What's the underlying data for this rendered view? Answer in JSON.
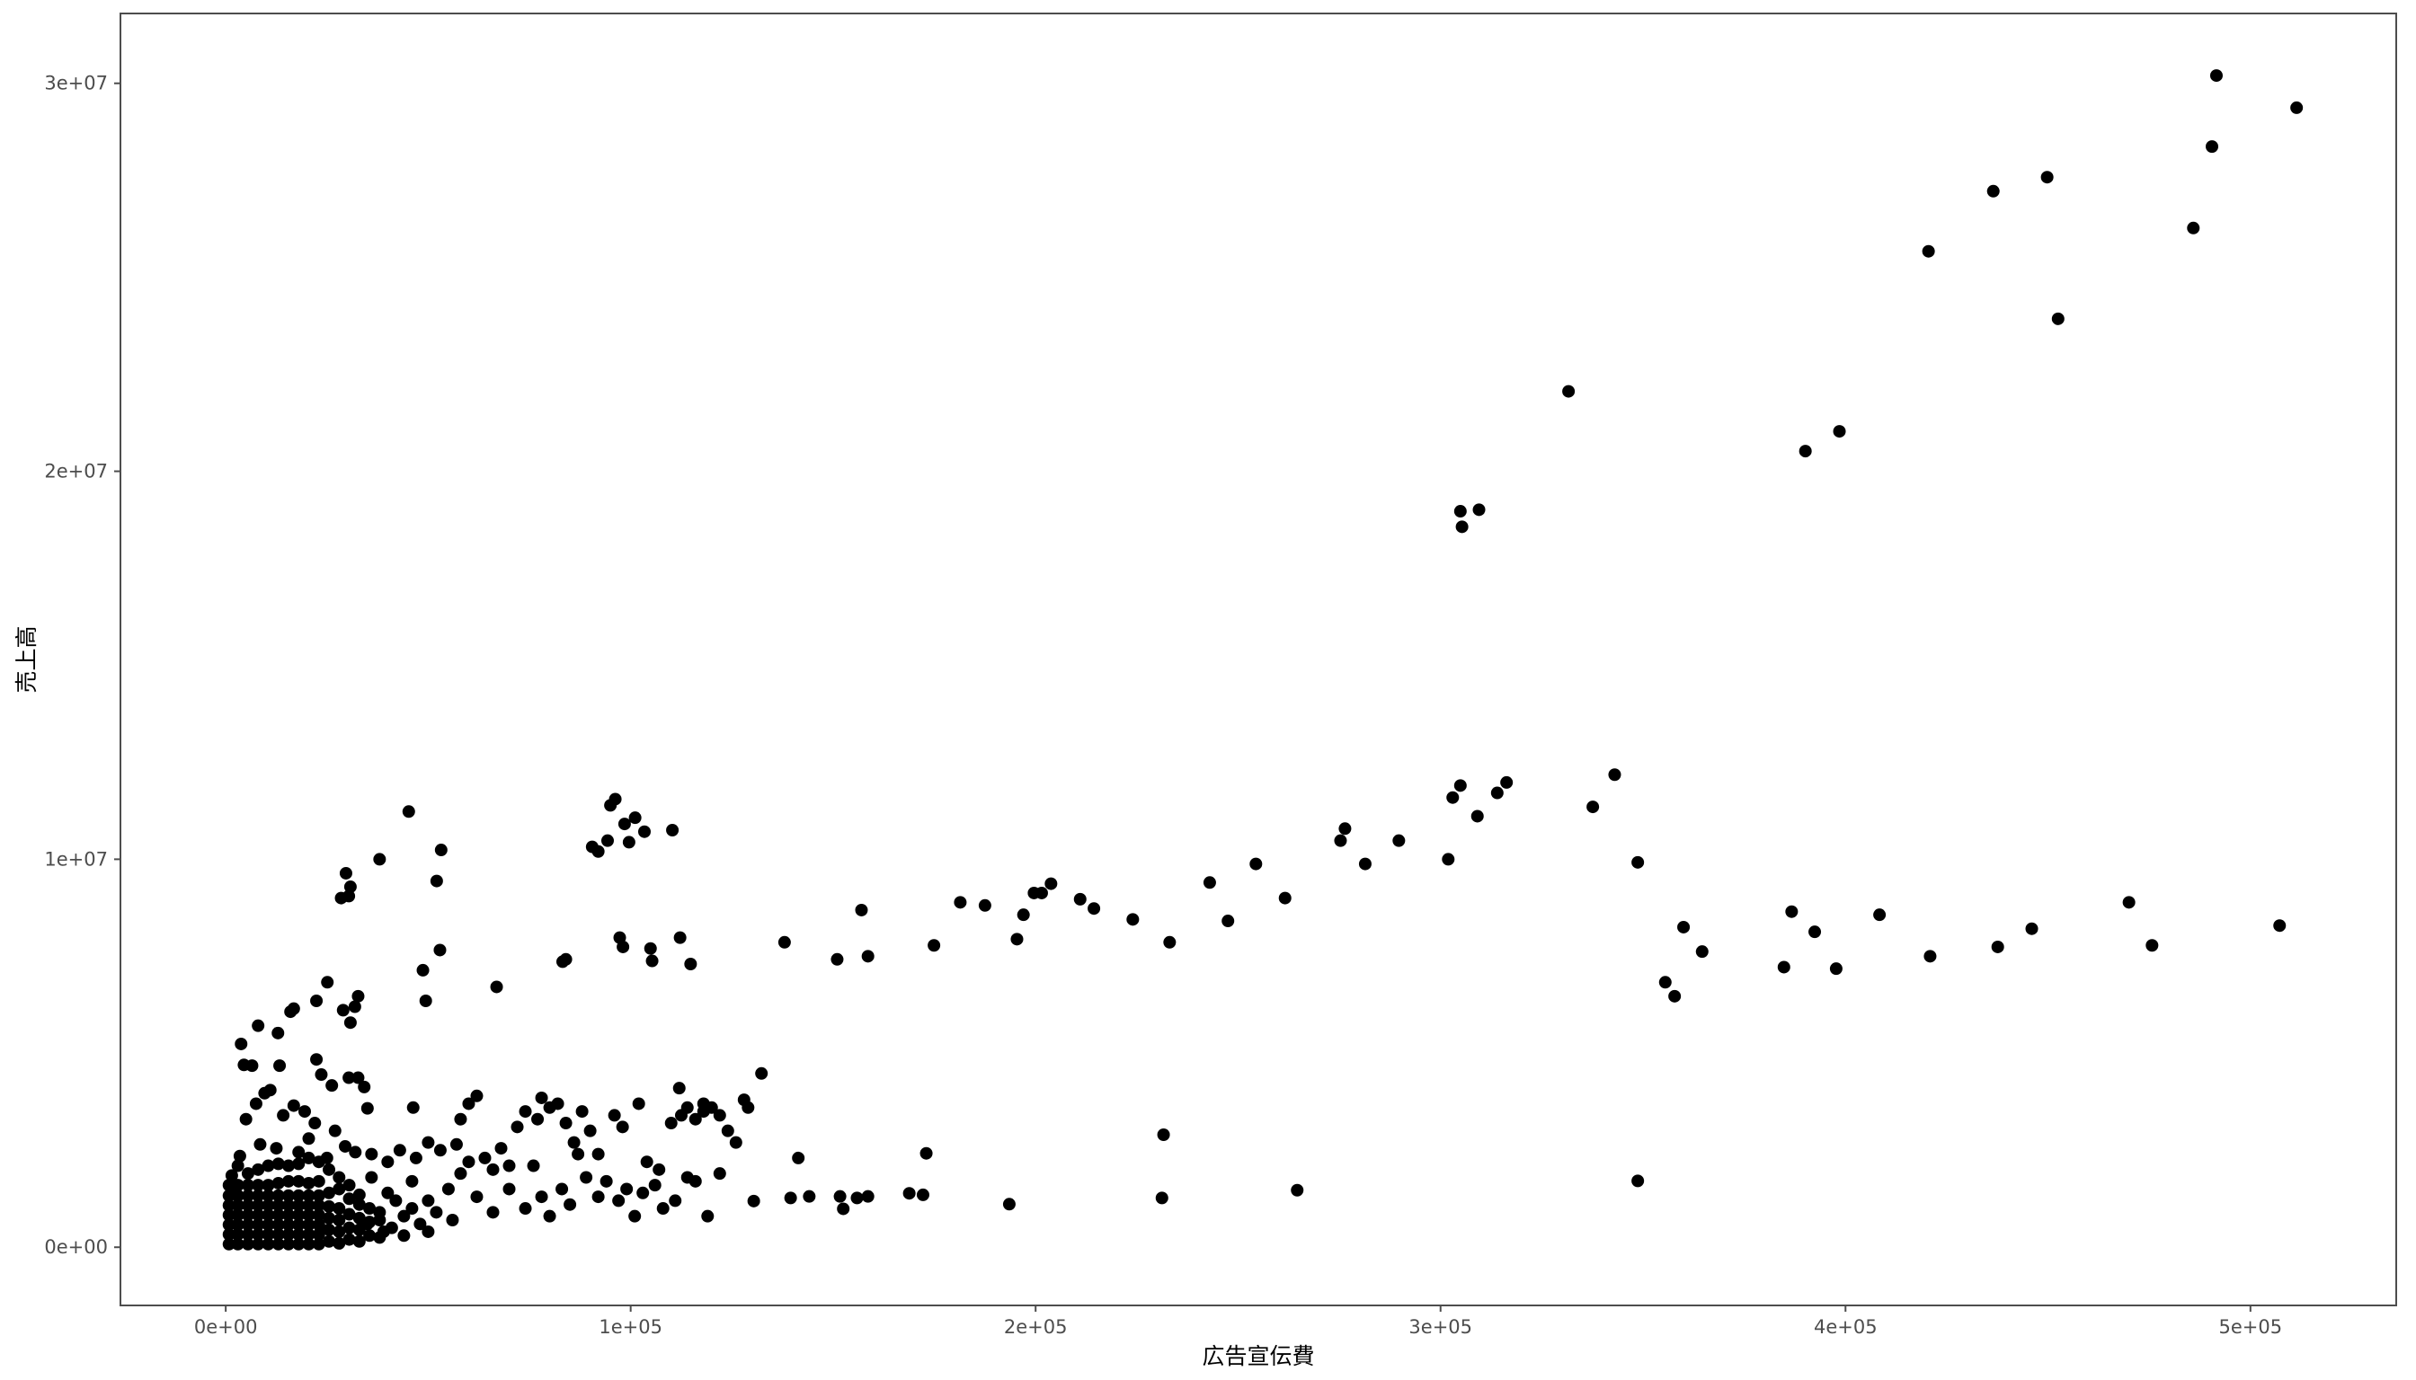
{
  "chart_data": {
    "type": "scatter",
    "title": "",
    "xlabel": "広告宣伝費",
    "ylabel": "売上高",
    "xlim": [
      -26000,
      536000
    ],
    "ylim": [
      -1500000,
      31800000
    ],
    "xticks": [
      0,
      100000,
      200000,
      300000,
      400000,
      500000
    ],
    "xtick_labels": [
      "0e+00",
      "1e+05",
      "2e+05",
      "3e+05",
      "4e+05",
      "5e+05"
    ],
    "yticks": [
      0,
      10000000,
      20000000,
      30000000
    ],
    "ytick_labels": [
      "0e+00",
      "1e+07",
      "2e+07",
      "3e+07"
    ],
    "grid": false,
    "point_color": "#000000",
    "points": [
      [
        491600,
        30200000
      ],
      [
        511400,
        29370000
      ],
      [
        449800,
        27580000
      ],
      [
        436500,
        27220000
      ],
      [
        490500,
        28370000
      ],
      [
        420500,
        25670000
      ],
      [
        485900,
        26270000
      ],
      [
        452500,
        23930000
      ],
      [
        331600,
        22060000
      ],
      [
        398500,
        21030000
      ],
      [
        390100,
        20520000
      ],
      [
        304900,
        18970000
      ],
      [
        309500,
        19010000
      ],
      [
        305300,
        18570000
      ],
      [
        343000,
        12180000
      ],
      [
        316300,
        11980000
      ],
      [
        304900,
        11900000
      ],
      [
        303000,
        11590000
      ],
      [
        314000,
        11710000
      ],
      [
        337600,
        11350000
      ],
      [
        309100,
        11110000
      ],
      [
        301900,
        10000000
      ],
      [
        348700,
        9920000
      ],
      [
        276400,
        10790000
      ],
      [
        275300,
        10480000
      ],
      [
        289700,
        10480000
      ],
      [
        281400,
        9880000
      ],
      [
        254400,
        9880000
      ],
      [
        243000,
        9400000
      ],
      [
        261600,
        9000000
      ],
      [
        247500,
        8410000
      ],
      [
        233100,
        7860000
      ],
      [
        224000,
        8450000
      ],
      [
        211000,
        8970000
      ],
      [
        214400,
        8730000
      ],
      [
        203800,
        9370000
      ],
      [
        199600,
        9130000
      ],
      [
        201500,
        9130000
      ],
      [
        197000,
        8570000
      ],
      [
        195400,
        7940000
      ],
      [
        187500,
        8810000
      ],
      [
        181400,
        8890000
      ],
      [
        174900,
        7780000
      ],
      [
        157000,
        8690000
      ],
      [
        158600,
        7500000
      ],
      [
        151000,
        7420000
      ],
      [
        138000,
        7860000
      ],
      [
        360000,
        8250000
      ],
      [
        364600,
        7620000
      ],
      [
        355500,
        6830000
      ],
      [
        357800,
        6470000
      ],
      [
        386700,
        8650000
      ],
      [
        392400,
        8130000
      ],
      [
        384800,
        7220000
      ],
      [
        397700,
        7180000
      ],
      [
        408400,
        8570000
      ],
      [
        420900,
        7500000
      ],
      [
        437600,
        7740000
      ],
      [
        446000,
        8210000
      ],
      [
        470000,
        8890000
      ],
      [
        475700,
        7780000
      ],
      [
        507200,
        8290000
      ],
      [
        348700,
        1710000
      ],
      [
        264600,
        1470000
      ],
      [
        231600,
        2900000
      ],
      [
        231200,
        1270000
      ],
      [
        193500,
        1110000
      ],
      [
        173000,
        2420000
      ],
      [
        172200,
        1350000
      ],
      [
        168800,
        1390000
      ],
      [
        158600,
        1310000
      ],
      [
        155900,
        1270000
      ],
      [
        151700,
        1310000
      ],
      [
        152500,
        990000
      ],
      [
        144100,
        1310000
      ],
      [
        139500,
        1270000
      ],
      [
        141400,
        2300000
      ],
      [
        130400,
        1190000
      ],
      [
        132300,
        4480000
      ],
      [
        96200,
        11550000
      ],
      [
        95000,
        11390000
      ],
      [
        101100,
        11070000
      ],
      [
        98500,
        10910000
      ],
      [
        103400,
        10710000
      ],
      [
        110300,
        10750000
      ],
      [
        99600,
        10440000
      ],
      [
        94300,
        10480000
      ],
      [
        90500,
        10320000
      ],
      [
        92000,
        10200000
      ],
      [
        45200,
        11230000
      ],
      [
        53200,
        10240000
      ],
      [
        52100,
        9440000
      ],
      [
        38000,
        10000000
      ],
      [
        29700,
        9640000
      ],
      [
        30800,
        9290000
      ],
      [
        30400,
        9050000
      ],
      [
        28500,
        9000000
      ],
      [
        52900,
        7660000
      ],
      [
        48700,
        7140000
      ],
      [
        49400,
        6350000
      ],
      [
        66900,
        6710000
      ],
      [
        84000,
        7420000
      ],
      [
        83200,
        7360000
      ],
      [
        97300,
        7980000
      ],
      [
        98100,
        7740000
      ],
      [
        104900,
        7700000
      ],
      [
        105300,
        7380000
      ],
      [
        112200,
        7980000
      ],
      [
        114800,
        7300000
      ],
      [
        25100,
        6830000
      ],
      [
        32700,
        6470000
      ],
      [
        31900,
        6200000
      ],
      [
        22400,
        6350000
      ],
      [
        16000,
        6070000
      ],
      [
        16800,
        6150000
      ],
      [
        8000,
        5710000
      ],
      [
        12900,
        5520000
      ],
      [
        3800,
        5240000
      ],
      [
        29000,
        6110000
      ],
      [
        30800,
        5790000
      ],
      [
        13300,
        4680000
      ],
      [
        6500,
        4680000
      ],
      [
        9600,
        3970000
      ],
      [
        22400,
        4840000
      ],
      [
        23600,
        4450000
      ],
      [
        26200,
        4170000
      ],
      [
        30400,
        4370000
      ],
      [
        32700,
        4370000
      ],
      [
        34200,
        4130000
      ],
      [
        35000,
        3580000
      ],
      [
        46300,
        3600000
      ],
      [
        4500,
        4700000
      ],
      [
        11000,
        4050000
      ],
      [
        5000,
        3300000
      ],
      [
        7500,
        3700000
      ],
      [
        14200,
        3400000
      ],
      [
        16800,
        3650000
      ],
      [
        19500,
        3500000
      ],
      [
        22000,
        3200000
      ],
      [
        27000,
        3000000
      ],
      [
        29500,
        2600000
      ],
      [
        20500,
        2800000
      ],
      [
        18000,
        2450000
      ],
      [
        12500,
        2550000
      ],
      [
        8500,
        2650000
      ],
      [
        3500,
        2350000
      ],
      [
        25000,
        2300000
      ],
      [
        32000,
        2450000
      ],
      [
        36000,
        2400000
      ],
      [
        40000,
        2200000
      ],
      [
        43000,
        2500000
      ],
      [
        47000,
        2300000
      ],
      [
        50000,
        2700000
      ],
      [
        53000,
        2500000
      ],
      [
        57000,
        2650000
      ],
      [
        60000,
        3700000
      ],
      [
        62000,
        3900000
      ],
      [
        58000,
        3300000
      ],
      [
        64000,
        2300000
      ],
      [
        68000,
        2550000
      ],
      [
        72000,
        3100000
      ],
      [
        74000,
        3500000
      ],
      [
        77000,
        3300000
      ],
      [
        78000,
        3850000
      ],
      [
        80000,
        3600000
      ],
      [
        82000,
        3700000
      ],
      [
        84000,
        3200000
      ],
      [
        86000,
        2700000
      ],
      [
        88000,
        3500000
      ],
      [
        90000,
        3000000
      ],
      [
        92000,
        2400000
      ],
      [
        96000,
        3400000
      ],
      [
        98000,
        3100000
      ],
      [
        102000,
        3700000
      ],
      [
        104000,
        2200000
      ],
      [
        107000,
        2000000
      ],
      [
        110000,
        3200000
      ],
      [
        112000,
        4100000
      ],
      [
        114000,
        3600000
      ],
      [
        116000,
        3300000
      ],
      [
        118000,
        3500000
      ],
      [
        120000,
        3600000
      ],
      [
        122000,
        3400000
      ],
      [
        124000,
        3000000
      ],
      [
        126000,
        2700000
      ],
      [
        128000,
        3800000
      ],
      [
        129000,
        3600000
      ],
      [
        118000,
        3700000
      ],
      [
        112500,
        3400000
      ],
      [
        70000,
        2100000
      ],
      [
        66000,
        2000000
      ],
      [
        60000,
        2200000
      ],
      [
        55000,
        1500000
      ],
      [
        58000,
        1900000
      ],
      [
        62000,
        1300000
      ],
      [
        66000,
        900000
      ],
      [
        70000,
        1500000
      ],
      [
        74000,
        1000000
      ],
      [
        76000,
        2100000
      ],
      [
        78000,
        1300000
      ],
      [
        80000,
        800000
      ],
      [
        83000,
        1500000
      ],
      [
        85000,
        1100000
      ],
      [
        87000,
        2400000
      ],
      [
        89000,
        1800000
      ],
      [
        92000,
        1300000
      ],
      [
        94000,
        1700000
      ],
      [
        97000,
        1200000
      ],
      [
        99000,
        1500000
      ],
      [
        101000,
        800000
      ],
      [
        103000,
        1400000
      ],
      [
        106000,
        1600000
      ],
      [
        108000,
        1000000
      ],
      [
        111000,
        1200000
      ],
      [
        114000,
        1800000
      ],
      [
        116000,
        1700000
      ],
      [
        119000,
        800000
      ],
      [
        122000,
        1900000
      ],
      [
        46000,
        1700000
      ],
      [
        50000,
        1200000
      ],
      [
        44000,
        800000
      ],
      [
        40000,
        1400000
      ],
      [
        38000,
        900000
      ],
      [
        36000,
        1800000
      ],
      [
        42000,
        1200000
      ],
      [
        48000,
        600000
      ],
      [
        52000,
        900000
      ],
      [
        56000,
        700000
      ],
      [
        35000,
        600000
      ],
      [
        39000,
        400000
      ],
      [
        33000,
        1100000
      ],
      [
        800,
        80000
      ],
      [
        800,
        330000
      ],
      [
        800,
        580000
      ],
      [
        800,
        830000
      ],
      [
        800,
        1080000
      ],
      [
        800,
        1330000
      ],
      [
        800,
        1600000
      ],
      [
        1500,
        1850000
      ],
      [
        3000,
        2100000
      ],
      [
        2000,
        1400000
      ],
      [
        3000,
        80000
      ],
      [
        3000,
        330000
      ],
      [
        3000,
        580000
      ],
      [
        3000,
        830000
      ],
      [
        3000,
        1080000
      ],
      [
        3000,
        1330000
      ],
      [
        3000,
        1600000
      ],
      [
        5500,
        80000
      ],
      [
        5500,
        330000
      ],
      [
        5500,
        580000
      ],
      [
        5500,
        830000
      ],
      [
        5500,
        1080000
      ],
      [
        5500,
        1330000
      ],
      [
        5500,
        1600000
      ],
      [
        5500,
        1900000
      ],
      [
        8000,
        80000
      ],
      [
        8000,
        330000
      ],
      [
        8000,
        580000
      ],
      [
        8000,
        830000
      ],
      [
        8000,
        1080000
      ],
      [
        8000,
        1330000
      ],
      [
        8000,
        1600000
      ],
      [
        8000,
        2000000
      ],
      [
        10500,
        80000
      ],
      [
        10500,
        330000
      ],
      [
        10500,
        580000
      ],
      [
        10500,
        830000
      ],
      [
        10500,
        1080000
      ],
      [
        10500,
        1330000
      ],
      [
        10500,
        1600000
      ],
      [
        10500,
        2100000
      ],
      [
        13000,
        80000
      ],
      [
        13000,
        330000
      ],
      [
        13000,
        580000
      ],
      [
        13000,
        830000
      ],
      [
        13000,
        1080000
      ],
      [
        13000,
        1330000
      ],
      [
        13000,
        1650000
      ],
      [
        13000,
        2150000
      ],
      [
        15500,
        80000
      ],
      [
        15500,
        330000
      ],
      [
        15500,
        580000
      ],
      [
        15500,
        830000
      ],
      [
        15500,
        1080000
      ],
      [
        15500,
        1330000
      ],
      [
        15500,
        1700000
      ],
      [
        15500,
        2100000
      ],
      [
        18000,
        80000
      ],
      [
        18000,
        330000
      ],
      [
        18000,
        580000
      ],
      [
        18000,
        830000
      ],
      [
        18000,
        1080000
      ],
      [
        18000,
        1330000
      ],
      [
        18000,
        1700000
      ],
      [
        18000,
        2150000
      ],
      [
        20500,
        80000
      ],
      [
        20500,
        330000
      ],
      [
        20500,
        580000
      ],
      [
        20500,
        830000
      ],
      [
        20500,
        1080000
      ],
      [
        20500,
        1330000
      ],
      [
        20500,
        1650000
      ],
      [
        20500,
        2300000
      ],
      [
        23000,
        80000
      ],
      [
        23000,
        330000
      ],
      [
        23000,
        580000
      ],
      [
        23000,
        830000
      ],
      [
        23000,
        1080000
      ],
      [
        23000,
        1330000
      ],
      [
        23000,
        1700000
      ],
      [
        23000,
        2200000
      ],
      [
        25500,
        150000
      ],
      [
        25500,
        450000
      ],
      [
        25500,
        750000
      ],
      [
        25500,
        1050000
      ],
      [
        25500,
        1400000
      ],
      [
        25500,
        2000000
      ],
      [
        28000,
        100000
      ],
      [
        28000,
        400000
      ],
      [
        28000,
        700000
      ],
      [
        28000,
        1000000
      ],
      [
        28000,
        1500000
      ],
      [
        28000,
        1800000
      ],
      [
        30500,
        200000
      ],
      [
        30500,
        500000
      ],
      [
        30500,
        850000
      ],
      [
        30500,
        1250000
      ],
      [
        30500,
        1600000
      ],
      [
        33000,
        150000
      ],
      [
        33000,
        450000
      ],
      [
        33000,
        750000
      ],
      [
        33000,
        1350000
      ],
      [
        35500,
        300000
      ],
      [
        35500,
        650000
      ],
      [
        35500,
        1000000
      ],
      [
        38000,
        250000
      ],
      [
        38000,
        700000
      ],
      [
        41000,
        500000
      ],
      [
        44000,
        300000
      ],
      [
        46000,
        1000000
      ],
      [
        50000,
        400000
      ]
    ]
  }
}
